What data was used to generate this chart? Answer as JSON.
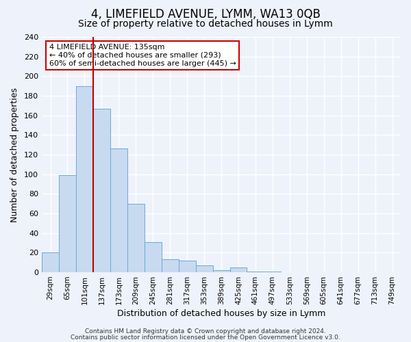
{
  "title": "4, LIMEFIELD AVENUE, LYMM, WA13 0QB",
  "subtitle": "Size of property relative to detached houses in Lymm",
  "xlabel": "Distribution of detached houses by size in Lymm",
  "ylabel": "Number of detached properties",
  "bar_labels": [
    "29sqm",
    "65sqm",
    "101sqm",
    "137sqm",
    "173sqm",
    "209sqm",
    "245sqm",
    "281sqm",
    "317sqm",
    "353sqm",
    "389sqm",
    "425sqm",
    "461sqm",
    "497sqm",
    "533sqm",
    "569sqm",
    "605sqm",
    "641sqm",
    "677sqm",
    "713sqm",
    "749sqm"
  ],
  "bar_values": [
    20,
    99,
    190,
    167,
    126,
    70,
    31,
    13,
    12,
    7,
    2,
    5,
    1,
    1,
    0,
    0,
    0,
    0,
    0,
    0,
    0
  ],
  "bar_color": "#c8daf0",
  "bar_edgecolor": "#6aaad4",
  "vline_x_index": 2,
  "vline_color": "#bb0000",
  "ylim": [
    0,
    240
  ],
  "yticks": [
    0,
    20,
    40,
    60,
    80,
    100,
    120,
    140,
    160,
    180,
    200,
    220,
    240
  ],
  "annotation_title": "4 LIMEFIELD AVENUE: 135sqm",
  "annotation_line1": "← 40% of detached houses are smaller (293)",
  "annotation_line2": "60% of semi-detached houses are larger (445) →",
  "annotation_box_color": "#ffffff",
  "annotation_box_edgecolor": "#cc0000",
  "bg_color": "#eef2fa",
  "grid_color": "#ffffff",
  "footer1": "Contains HM Land Registry data © Crown copyright and database right 2024.",
  "footer2": "Contains public sector information licensed under the Open Government Licence v3.0.",
  "title_fontsize": 12,
  "subtitle_fontsize": 10
}
